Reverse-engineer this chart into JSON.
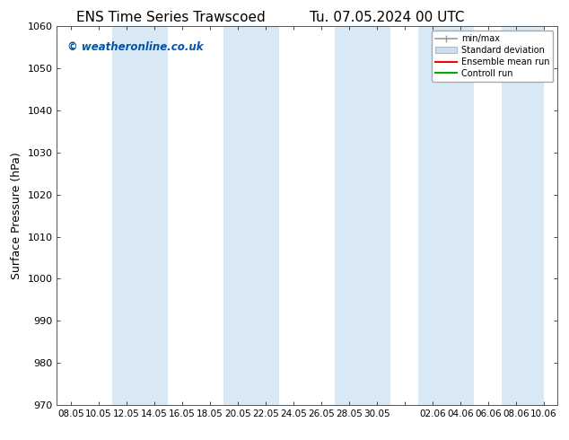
{
  "title_left": "ENS Time Series Trawscoed",
  "title_right": "Tu. 07.05.2024 00 UTC",
  "ylabel": "Surface Pressure (hPa)",
  "ylim": [
    970,
    1060
  ],
  "yticks": [
    970,
    980,
    990,
    1000,
    1010,
    1020,
    1030,
    1040,
    1050,
    1060
  ],
  "xtick_labels": [
    "08.05",
    "10.05",
    "12.05",
    "14.05",
    "16.05",
    "18.05",
    "20.05",
    "22.05",
    "24.05",
    "26.05",
    "28.05",
    "30.05",
    "",
    "02.06",
    "04.06",
    "06.06",
    "08.06",
    "10.06"
  ],
  "watermark": "© weatheronline.co.uk",
  "watermark_color": "#0055aa",
  "bg_color": "#ffffff",
  "plot_bg_color": "#ffffff",
  "shade_color": "#d8e8f5",
  "legend_items": [
    "min/max",
    "Standard deviation",
    "Ensemble mean run",
    "Controll run"
  ],
  "legend_line_colors": [
    "#999999",
    "#bbccdd",
    "#ff0000",
    "#00aa00"
  ],
  "title_fontsize": 11,
  "axis_fontsize": 9,
  "tick_fontsize": 8
}
